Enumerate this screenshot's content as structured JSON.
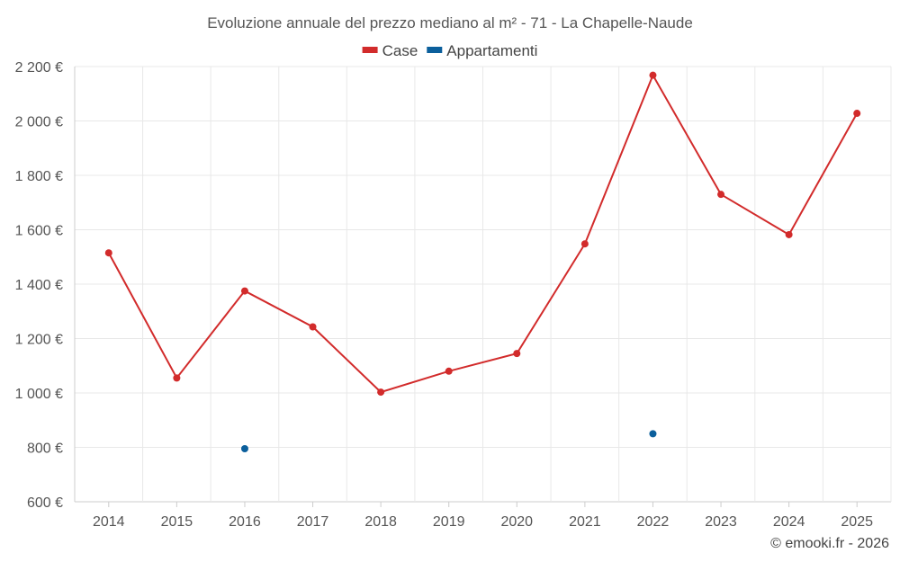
{
  "chart_data": {
    "type": "line",
    "title": "Evoluzione annuale del prezzo mediano al m² - 71 - La Chapelle-Naude",
    "categories": [
      "2014",
      "2015",
      "2016",
      "2017",
      "2018",
      "2019",
      "2020",
      "2021",
      "2022",
      "2023",
      "2024",
      "2025"
    ],
    "series": [
      {
        "name": "Case",
        "color": "#d22b2b",
        "values": [
          1515,
          1055,
          1375,
          1243,
          1003,
          1080,
          1145,
          1548,
          2168,
          1730,
          1582,
          2028
        ]
      },
      {
        "name": "Appartamenti",
        "color": "#0b5f9c",
        "values": [
          null,
          null,
          795,
          null,
          null,
          null,
          null,
          null,
          850,
          null,
          null,
          null
        ]
      }
    ],
    "ylim": [
      600,
      2200
    ],
    "yticks": [
      600,
      800,
      1000,
      1200,
      1400,
      1600,
      1800,
      2000,
      2200
    ],
    "ytick_labels": [
      "600 €",
      "800 €",
      "1 000 €",
      "1 200 €",
      "1 400 €",
      "1 600 €",
      "1 800 €",
      "2 000 €",
      "2 200 €"
    ],
    "xlabel": "",
    "ylabel": "",
    "grid": true,
    "legend_position": "top-center"
  },
  "credit": "© emooki.fr - 2026"
}
